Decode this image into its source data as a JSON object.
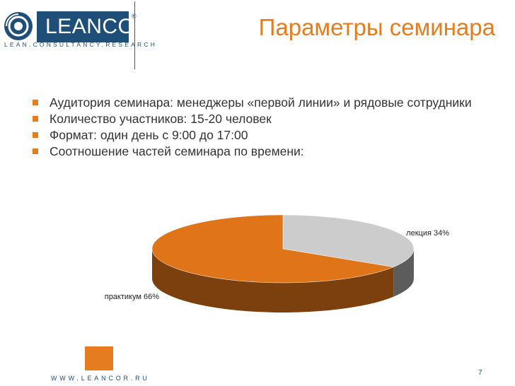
{
  "brand": {
    "name": "LEANCOR",
    "registered": "®",
    "tagline": "LEAN.CONSULTANCY.RESEARCH",
    "url": "WWW.LEANCOR.RU",
    "color_primary": "#1f4e79",
    "color_accent": "#e57c20"
  },
  "slide": {
    "title": "Параметры семинара",
    "page_number": "7",
    "bullets": [
      "Аудитория семинара: менеджеры «первой линии» и рядовые сотрудники",
      "Количество участников: 15-20 человек",
      "Формат: один день с 9:00 до 17:00",
      "Соотношение частей семинара по времени:"
    ]
  },
  "chart_data": {
    "type": "pie",
    "categories": [
      "лекция",
      "практикум"
    ],
    "values": [
      34,
      66
    ],
    "labels": [
      "лекция 34%",
      "практикум 66%"
    ],
    "colors": [
      "#cccccc",
      "#e07418"
    ],
    "style": "3d"
  }
}
